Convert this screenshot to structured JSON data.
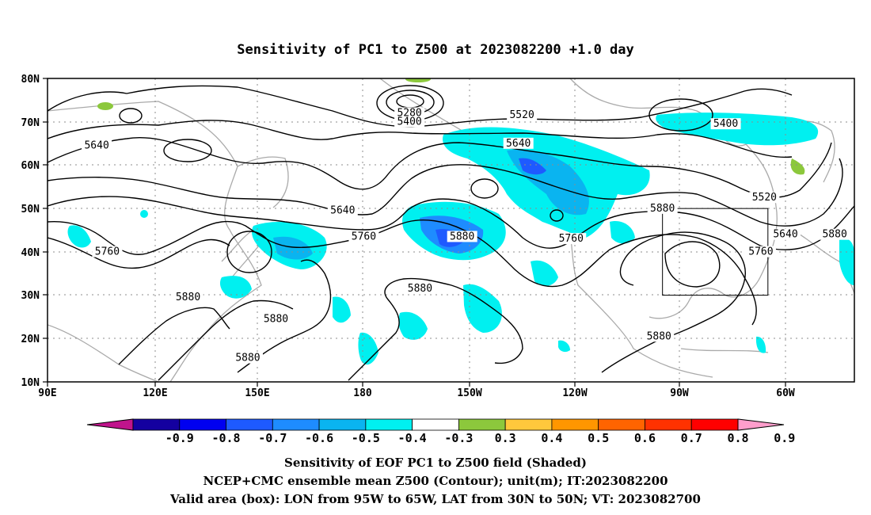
{
  "title": "Sensitivity of PC1 to Z500 at 2023082200 +1.0 day",
  "x_ticks": [
    "90E",
    "120E",
    "150E",
    "180",
    "150W",
    "120W",
    "90W",
    "60W"
  ],
  "y_ticks": [
    "80N",
    "70N",
    "60N",
    "50N",
    "40N",
    "30N",
    "20N",
    "10N"
  ],
  "contour_labels": [
    {
      "text": "5280",
      "lon": 193,
      "lat": 71.5
    },
    {
      "text": "5400",
      "lon": 193,
      "lat": 69.5
    },
    {
      "text": "5520",
      "lon": 225,
      "lat": 71
    },
    {
      "text": "5400",
      "lon": 283,
      "lat": 69
    },
    {
      "text": "5640",
      "lon": 104,
      "lat": 64
    },
    {
      "text": "5640",
      "lon": 224,
      "lat": 64.5
    },
    {
      "text": "5520",
      "lon": 294,
      "lat": 52
    },
    {
      "text": "5880",
      "lon": 265,
      "lat": 49.5
    },
    {
      "text": "5640",
      "lon": 174,
      "lat": 49
    },
    {
      "text": "5880",
      "lon": 208,
      "lat": 43
    },
    {
      "text": "5760",
      "lon": 180,
      "lat": 43
    },
    {
      "text": "5760",
      "lon": 239,
      "lat": 42.5
    },
    {
      "text": "5640",
      "lon": 300,
      "lat": 43.5
    },
    {
      "text": "5880",
      "lon": 314,
      "lat": 43.5
    },
    {
      "text": "5760",
      "lon": 107,
      "lat": 39.5
    },
    {
      "text": "5760",
      "lon": 293,
      "lat": 39.5
    },
    {
      "text": "5880",
      "lon": 196,
      "lat": 31
    },
    {
      "text": "5880",
      "lon": 130,
      "lat": 29
    },
    {
      "text": "5880",
      "lon": 155,
      "lat": 24
    },
    {
      "text": "5880",
      "lon": 264,
      "lat": 20
    },
    {
      "text": "5880",
      "lon": 147,
      "lat": 15
    }
  ],
  "valid_box": {
    "lon_min": 265,
    "lon_max": 295,
    "lat_min": 30,
    "lat_max": 50
  },
  "colorbar": {
    "colors": [
      "#c0148c",
      "#1400a0",
      "#0000f0",
      "#1e5aff",
      "#1e8cff",
      "#0ab4f0",
      "#00f0f0",
      "#ffffff",
      "#8cc83c",
      "#ffc83c",
      "#ff9600",
      "#ff6400",
      "#ff3200",
      "#ff0000",
      "#ff9ecc"
    ],
    "labels": [
      "-0.9",
      "-0.8",
      "-0.7",
      "-0.6",
      "-0.5",
      "-0.4",
      "-0.3",
      "0.3",
      "0.4",
      "0.5",
      "0.6",
      "0.7",
      "0.8",
      "0.9"
    ]
  },
  "captions": [
    "Sensitivity of EOF PC1 to Z500 field (Shaded)",
    "NCEP+CMC ensemble mean Z500 (Contour); unit(m); IT:2023082200",
    "Valid area (box): LON from 95W to 65W, LAT from 30N to 50N; VT: 2023082700"
  ]
}
